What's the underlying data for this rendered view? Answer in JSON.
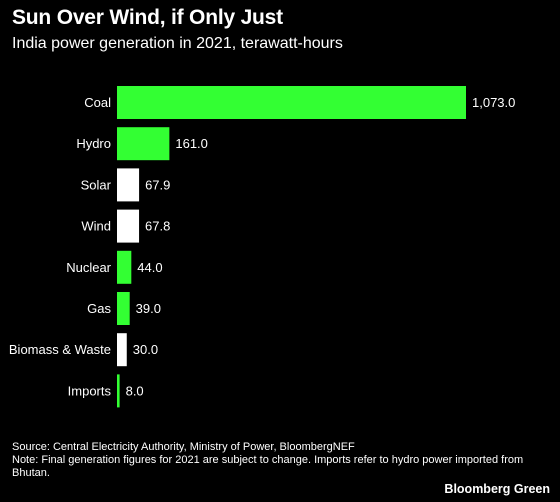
{
  "header": {
    "title": "Sun Over Wind, if Only Just",
    "subtitle": "India power generation in 2021, terawatt-hours"
  },
  "chart_data": {
    "type": "bar",
    "orientation": "horizontal",
    "title": "Sun Over Wind, if Only Just",
    "subtitle": "India power generation in 2021, terawatt-hours",
    "categories": [
      "Coal",
      "Hydro",
      "Solar",
      "Wind",
      "Nuclear",
      "Gas",
      "Biomass & Waste",
      "Imports"
    ],
    "values": [
      1073.0,
      161.0,
      67.9,
      67.8,
      44.0,
      39.0,
      30.0,
      8.0
    ],
    "value_labels": [
      "1,073.0",
      "161.0",
      "67.9",
      "67.8",
      "44.0",
      "39.0",
      "30.0",
      "8.0"
    ],
    "bar_colors": [
      "#33ff33",
      "#33ff33",
      "#ffffff",
      "#ffffff",
      "#33ff33",
      "#33ff33",
      "#ffffff",
      "#33ff33"
    ],
    "xlim": [
      0,
      1073.0
    ],
    "grid": false,
    "legend": "none"
  },
  "footer": {
    "source": "Source: Central Electricity Authority, Ministry of Power, BloombergNEF",
    "note": "Note: Final generation figures for 2021 are subject to change. Imports refer to hydro power imported from Bhutan."
  },
  "brand": "Bloomberg Green"
}
